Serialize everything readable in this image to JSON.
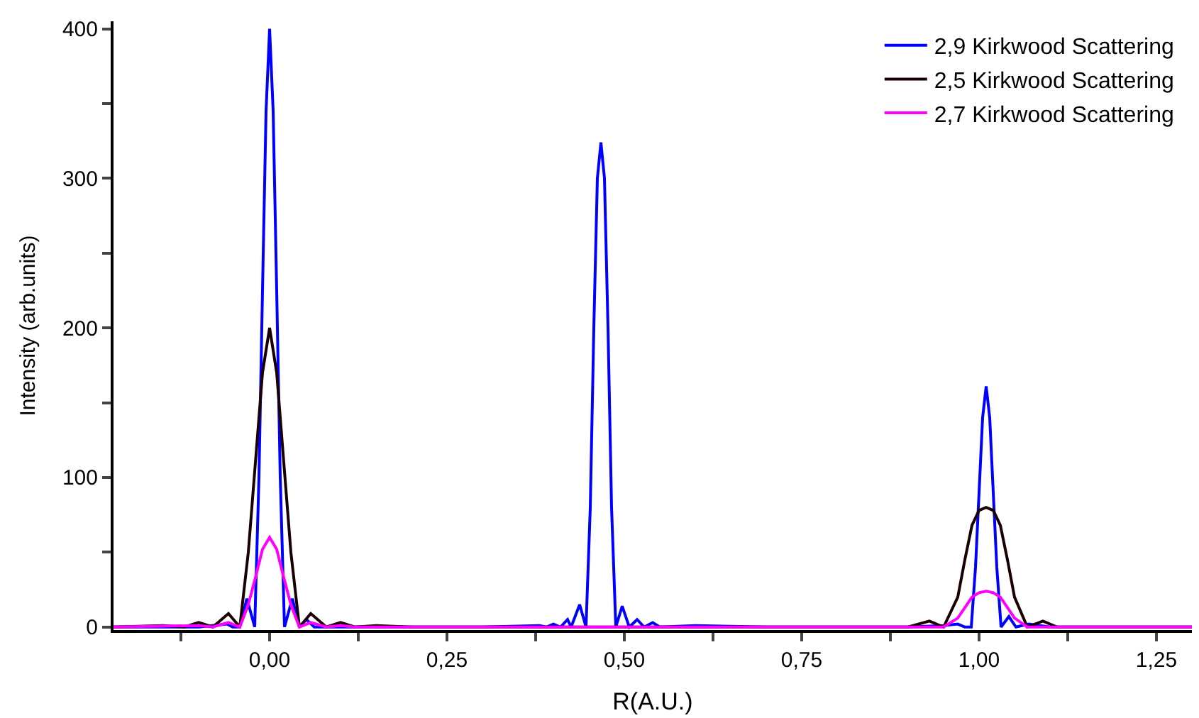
{
  "chart_data": {
    "type": "line",
    "xlabel": "R(A.U.)",
    "ylabel": "Intensity (arb.units)",
    "xlim": [
      -0.22,
      1.3
    ],
    "ylim": [
      -2,
      405
    ],
    "xticks": [
      {
        "value": -0.125,
        "label": null
      },
      {
        "value": 0,
        "label": "0,00"
      },
      {
        "value": 0.125,
        "label": null
      },
      {
        "value": 0.25,
        "label": "0,25"
      },
      {
        "value": 0.375,
        "label": null
      },
      {
        "value": 0.5,
        "label": "0,50"
      },
      {
        "value": 0.625,
        "label": null
      },
      {
        "value": 0.75,
        "label": "0,75"
      },
      {
        "value": 0.875,
        "label": null
      },
      {
        "value": 1.0,
        "label": "1,00"
      },
      {
        "value": 1.125,
        "label": null
      },
      {
        "value": 1.25,
        "label": "1,25"
      }
    ],
    "yticks": [
      0,
      {
        "value": 50,
        "label": null
      },
      100,
      {
        "value": 150,
        "label": null
      },
      200,
      {
        "value": 250,
        "label": null
      },
      300,
      {
        "value": 350,
        "label": null
      },
      400
    ],
    "legend": "top right",
    "marker": "none",
    "line_style": "solid",
    "series": [
      {
        "name": "2,9 Kirkwood Scattering",
        "color": "#0000ff",
        "x": [
          -0.22,
          -0.1,
          -0.06,
          -0.052,
          -0.042,
          -0.032,
          -0.021,
          -0.015,
          -0.01,
          -0.005,
          0,
          0.005,
          0.01,
          0.015,
          0.021,
          0.032,
          0.042,
          0.052,
          0.063,
          0.1,
          0.3,
          0.38,
          0.39,
          0.4,
          0.41,
          0.42,
          0.425,
          0.437,
          0.446,
          0.452,
          0.457,
          0.462,
          0.467,
          0.472,
          0.477,
          0.482,
          0.488,
          0.497,
          0.507,
          0.518,
          0.528,
          0.54,
          0.55,
          0.6,
          0.7,
          0.9,
          0.95,
          0.97,
          0.98,
          0.989,
          0.995,
          1.0,
          1.005,
          1.01,
          1.015,
          1.02,
          1.025,
          1.031,
          1.042,
          1.052,
          1.07,
          1.1,
          1.3
        ],
        "values": [
          0,
          0,
          2,
          0,
          0,
          19,
          0,
          100,
          225,
          345,
          400,
          345,
          225,
          100,
          0,
          19,
          0,
          5,
          0,
          0,
          0,
          1,
          0,
          2,
          0,
          5,
          0,
          15,
          0,
          80,
          200,
          300,
          324,
          300,
          200,
          80,
          0,
          14,
          0,
          5,
          0,
          3,
          0,
          1,
          0,
          0,
          1,
          2,
          0,
          0,
          40,
          90,
          140,
          161,
          140,
          90,
          40,
          0,
          7,
          0,
          2,
          0,
          0
        ]
      },
      {
        "name": "2,5 Kirkwood Scattering",
        "color": "#1a0000",
        "x": [
          -0.22,
          -0.15,
          -0.12,
          -0.1,
          -0.08,
          -0.058,
          -0.042,
          -0.03,
          -0.02,
          -0.01,
          0,
          0.01,
          0.02,
          0.03,
          0.042,
          0.058,
          0.08,
          0.1,
          0.12,
          0.15,
          0.2,
          0.9,
          0.93,
          0.95,
          0.97,
          0.98,
          0.99,
          1.0,
          1.01,
          1.02,
          1.03,
          1.04,
          1.05,
          1.068,
          1.09,
          1.11,
          1.3
        ],
        "values": [
          0,
          1,
          0,
          3,
          0,
          9,
          0,
          50,
          110,
          170,
          200,
          170,
          110,
          50,
          0,
          9,
          0,
          3,
          0,
          1,
          0,
          0,
          4,
          0,
          20,
          45,
          68,
          78,
          80,
          78,
          68,
          45,
          20,
          0,
          4,
          0,
          0
        ]
      },
      {
        "name": "2,7 Kirkwood Scattering",
        "color": "#ff00ff",
        "x": [
          -0.22,
          -0.1,
          -0.08,
          -0.058,
          -0.042,
          -0.03,
          -0.02,
          -0.01,
          0,
          0.01,
          0.02,
          0.03,
          0.042,
          0.058,
          0.08,
          0.1,
          0.12,
          0.95,
          0.97,
          0.98,
          0.99,
          1.0,
          1.01,
          1.02,
          1.03,
          1.04,
          1.05,
          1.068,
          1.3
        ],
        "values": [
          0,
          1,
          0,
          3,
          0,
          15,
          33,
          52,
          60,
          52,
          33,
          15,
          0,
          3,
          0,
          1,
          0,
          0,
          6,
          13,
          20,
          23,
          24,
          23,
          20,
          13,
          6,
          0,
          0
        ]
      }
    ]
  }
}
